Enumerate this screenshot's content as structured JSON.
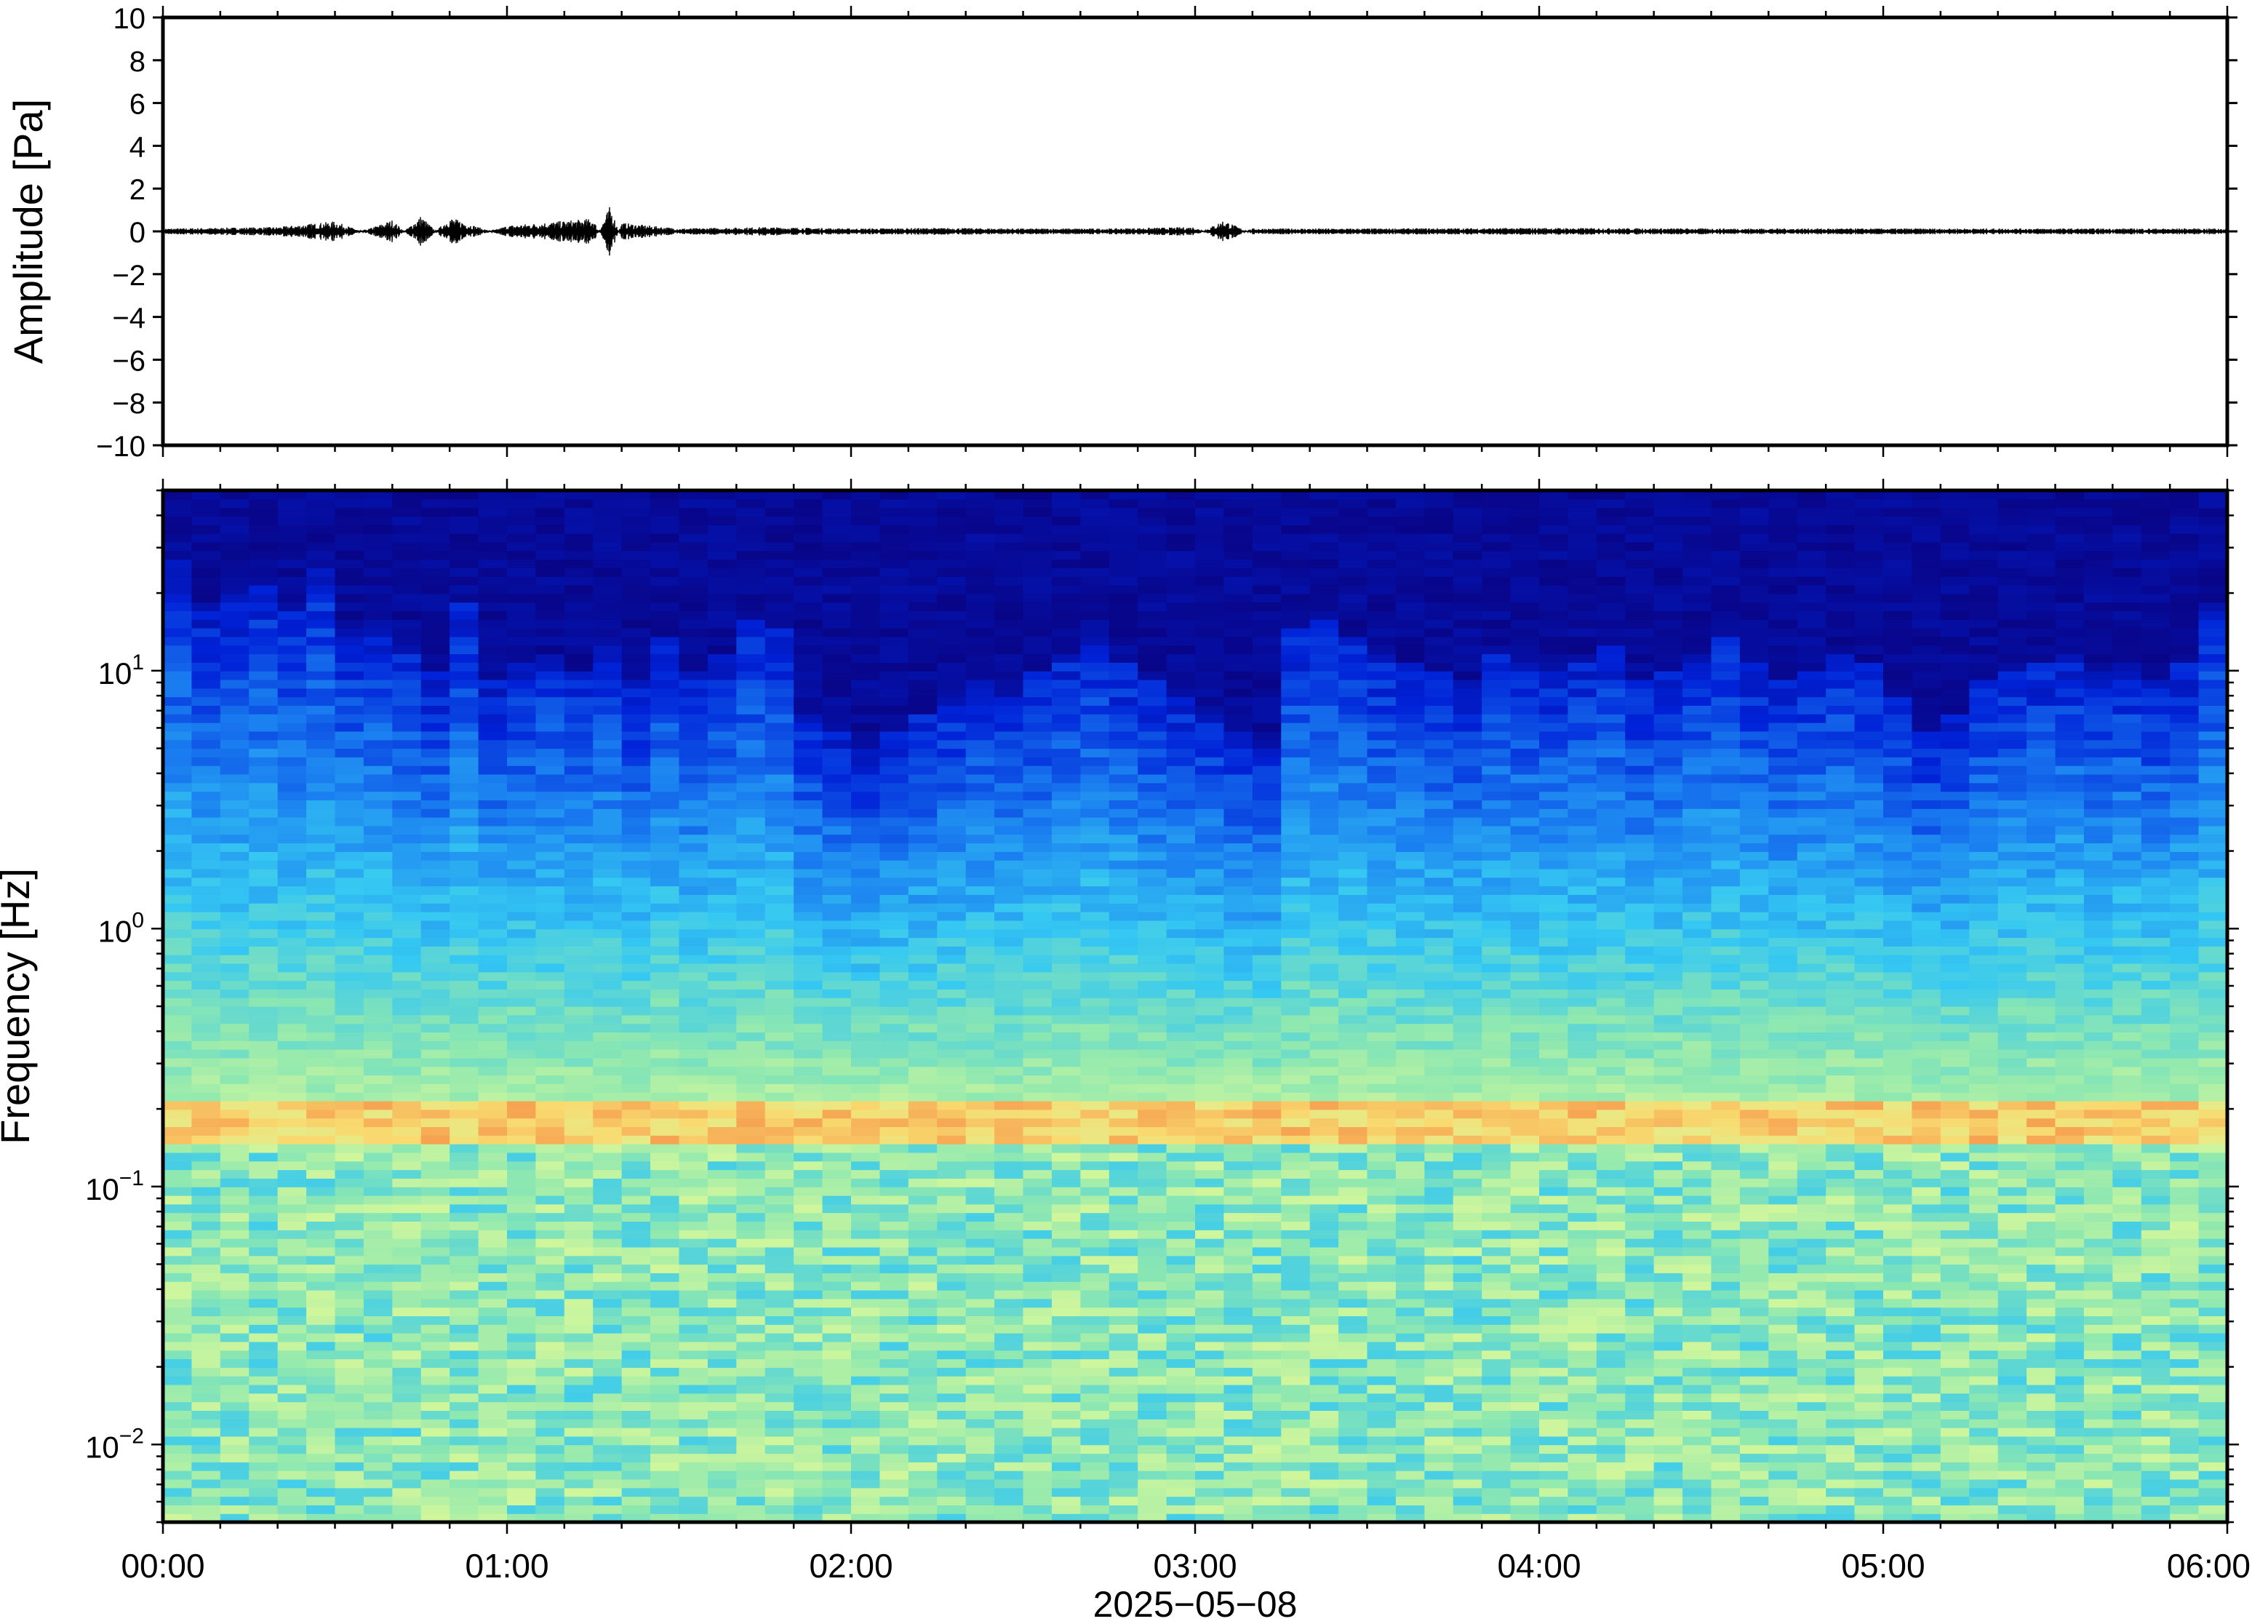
{
  "chart_data": [
    {
      "type": "line",
      "ylabel": "Amplitude [Pa]",
      "ylim": [
        -10,
        10
      ],
      "yticks": [
        10,
        8,
        6,
        4,
        2,
        0,
        -2,
        -4,
        -6,
        -8,
        -10
      ],
      "ytick_labels": [
        "10",
        "8",
        "6",
        "4",
        "2",
        "0",
        "−2",
        "−4",
        "−6",
        "−8",
        "−10"
      ],
      "x_range_minutes": [
        0,
        360
      ],
      "series": [
        {
          "x": [
            0,
            20,
            30,
            40,
            45,
            50,
            60,
            75,
            78,
            80,
            90,
            105,
            120,
            135,
            150,
            165,
            180,
            185,
            190,
            210,
            240,
            270,
            300,
            330,
            360
          ],
          "values": [
            0.1,
            0.15,
            0.35,
            -0.4,
            0.55,
            -0.5,
            0.2,
            0.45,
            -0.9,
            0.3,
            0.1,
            0.15,
            0.1,
            0.12,
            0.1,
            0.1,
            0.15,
            -0.4,
            0.1,
            0.1,
            0.12,
            0.1,
            0.1,
            0.1,
            0.1
          ],
          "color": "#000000"
        }
      ],
      "grid": false
    },
    {
      "type": "heatmap",
      "ylabel": "Frequency [Hz]",
      "yscale": "log",
      "ylim": [
        0.005,
        50
      ],
      "ytick_labels": [
        {
          "value": 10,
          "base": "10",
          "exp": "1"
        },
        {
          "value": 1,
          "base": "10",
          "exp": "0"
        },
        {
          "value": 0.1,
          "base": "10",
          "exp": "−1"
        },
        {
          "value": 0.01,
          "base": "10",
          "exp": "−2"
        }
      ],
      "xlabel": "2025−05−08",
      "x": [
        "00:00",
        "01:00",
        "02:00",
        "03:00",
        "04:00",
        "05:00",
        "06:00"
      ],
      "colormap": [
        "#0a007a",
        "#0022d8",
        "#1a7ef0",
        "#35c8f2",
        "#8ee8b0",
        "#d8f89a",
        "#f8da70",
        "#f69a4c"
      ],
      "columns": 72,
      "column_minutes": 5,
      "cutoff_hz": [
        28,
        18,
        20,
        22,
        17,
        25,
        15,
        16,
        13,
        10,
        18,
        9,
        11,
        12,
        10,
        13,
        9,
        14,
        10,
        12,
        16,
        15,
        7,
        6,
        5,
        6,
        7,
        8,
        9,
        8,
        10,
        12,
        14,
        11,
        9,
        8,
        7,
        6,
        5,
        15,
        16,
        14,
        12,
        11,
        10,
        9,
        12,
        11,
        10,
        11,
        13,
        9,
        10,
        12,
        14,
        11,
        9,
        10,
        12,
        11,
        8,
        6,
        7,
        9,
        10,
        11,
        12,
        10,
        11,
        9,
        11,
        18
      ],
      "peak_band_hz": [
        0.15,
        0.22
      ]
    }
  ]
}
